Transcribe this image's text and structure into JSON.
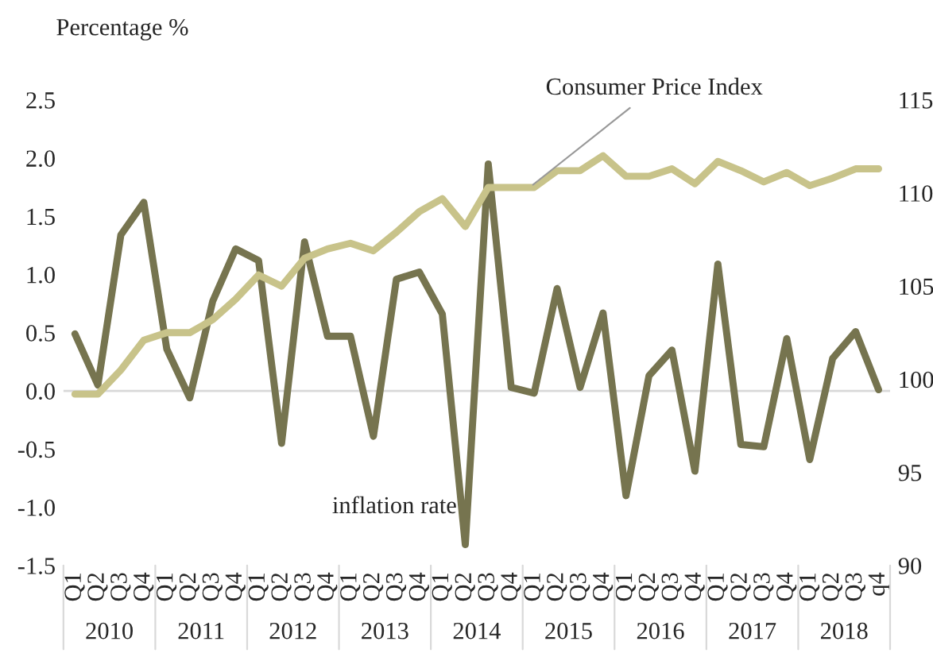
{
  "chart_data": {
    "type": "line",
    "ylabel": "Percentage %",
    "categories": [
      "Q1",
      "Q2",
      "Q3",
      "Q4",
      "Q1",
      "Q2",
      "Q3",
      "Q4",
      "Q1",
      "Q2",
      "Q3",
      "Q4",
      "Q1",
      "Q2",
      "Q3",
      "Q4",
      "Q1",
      "Q2",
      "Q3",
      "Q4",
      "Q1",
      "Q2",
      "Q3",
      "Q4",
      "Q1",
      "Q2",
      "Q3",
      "Q4",
      "Q1",
      "Q2",
      "Q3",
      "Q4",
      "Q1",
      "Q2",
      "Q3",
      "q4"
    ],
    "annotations": [
      "2010",
      "2011",
      "2012",
      "2013",
      "2014",
      "2015",
      "2016",
      "2017",
      "2018"
    ],
    "series": [
      {
        "name": "inflation rate",
        "color": "#76744f",
        "axis": "y",
        "values": [
          0.49,
          0.05,
          1.34,
          1.62,
          0.36,
          -0.06,
          0.77,
          1.22,
          1.12,
          -0.45,
          1.28,
          0.47,
          0.47,
          -0.39,
          0.96,
          1.02,
          0.66,
          -1.32,
          1.95,
          0.03,
          -0.02,
          0.88,
          0.03,
          0.67,
          -0.9,
          0.13,
          0.35,
          -0.69,
          1.09,
          -0.46,
          -0.48,
          0.45,
          -0.59,
          0.28,
          0.51,
          0.01
        ]
      },
      {
        "name": "Consumer Price Index",
        "color": "#c8c38a",
        "axis": "y2",
        "values": [
          99.2,
          99.2,
          100.5,
          102.1,
          102.5,
          102.5,
          103.2,
          104.3,
          105.6,
          105.0,
          106.5,
          107.0,
          107.3,
          106.9,
          107.9,
          109.0,
          109.7,
          108.2,
          110.3,
          110.3,
          110.3,
          111.2,
          111.2,
          112.0,
          110.9,
          110.9,
          111.3,
          110.5,
          111.7,
          111.2,
          110.6,
          111.1,
          110.4,
          110.8,
          111.3,
          111.3
        ]
      }
    ],
    "ylim": [
      -1.5,
      2.5
    ],
    "yticks": [
      {
        "value": -1.5,
        "label": "-1.5"
      },
      {
        "value": -1.0,
        "label": "-1.0"
      },
      {
        "value": -0.5,
        "label": "-0.5"
      },
      {
        "value": 0.0,
        "label": "0.0"
      },
      {
        "value": 0.5,
        "label": "0.5"
      },
      {
        "value": 1.0,
        "label": "1.0"
      },
      {
        "value": 1.5,
        "label": "1.5"
      },
      {
        "value": 2.0,
        "label": "2.0"
      },
      {
        "value": 2.5,
        "label": "2.5"
      }
    ],
    "y2lim": [
      90,
      115
    ],
    "y2ticks": [
      90,
      95,
      100,
      105,
      110,
      115
    ],
    "ref_lines": [
      {
        "axis": "y",
        "value": 0,
        "color": "#d9d9d9"
      }
    ],
    "grid": false,
    "legend": false,
    "line_style": "solid",
    "marker": "none"
  }
}
